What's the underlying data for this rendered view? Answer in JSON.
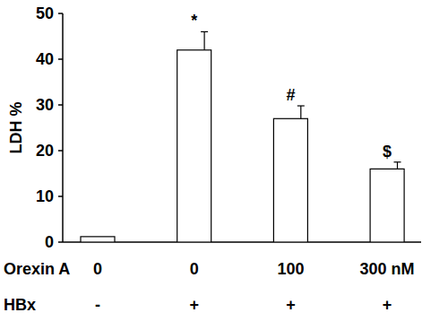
{
  "chart_data": {
    "type": "bar",
    "y_label": "LDH %",
    "row_labels": [
      "Orexin A",
      "HBx"
    ],
    "categories": [
      "0",
      "0",
      "100",
      "300 nM"
    ],
    "categories2": [
      "-",
      "+",
      "+",
      "+"
    ],
    "values": [
      1.2,
      42,
      27,
      16
    ],
    "errors": [
      null,
      4,
      2.8,
      1.5
    ],
    "annotations": [
      null,
      "*",
      "#",
      "$"
    ],
    "color": "#ffffff",
    "ylim": [
      0,
      50
    ],
    "yticks": [
      0,
      10,
      20,
      30,
      40,
      50
    ],
    "grid": false
  }
}
